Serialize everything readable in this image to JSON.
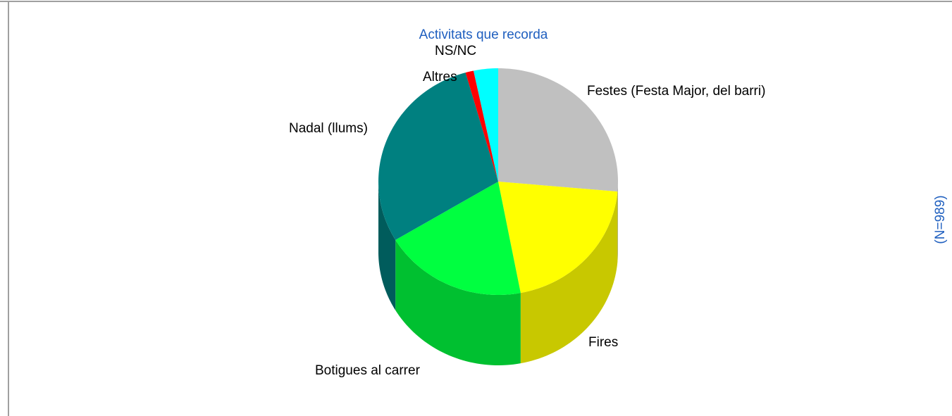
{
  "chart_data": {
    "type": "pie",
    "title": "Activitats que recorda",
    "subtitle": "(N=989)",
    "categories": [
      "Festes (Festa Major, del barri)",
      "Fires",
      "Botigues al carrer",
      "Nadal (llums)",
      "Altres",
      "NS/NC"
    ],
    "values": [
      26.4,
      20.6,
      19.4,
      29.2,
      1.1,
      3.3
    ],
    "colors": [
      "#c0c0c0",
      "#ffff00",
      "#00ff40",
      "#008080",
      "#ff0000",
      "#00ffff"
    ],
    "side_colors": [
      "#9a9a9a",
      "#c8c800",
      "#00c030",
      "#005c5c",
      "#b00000",
      "#00b0b0"
    ]
  }
}
